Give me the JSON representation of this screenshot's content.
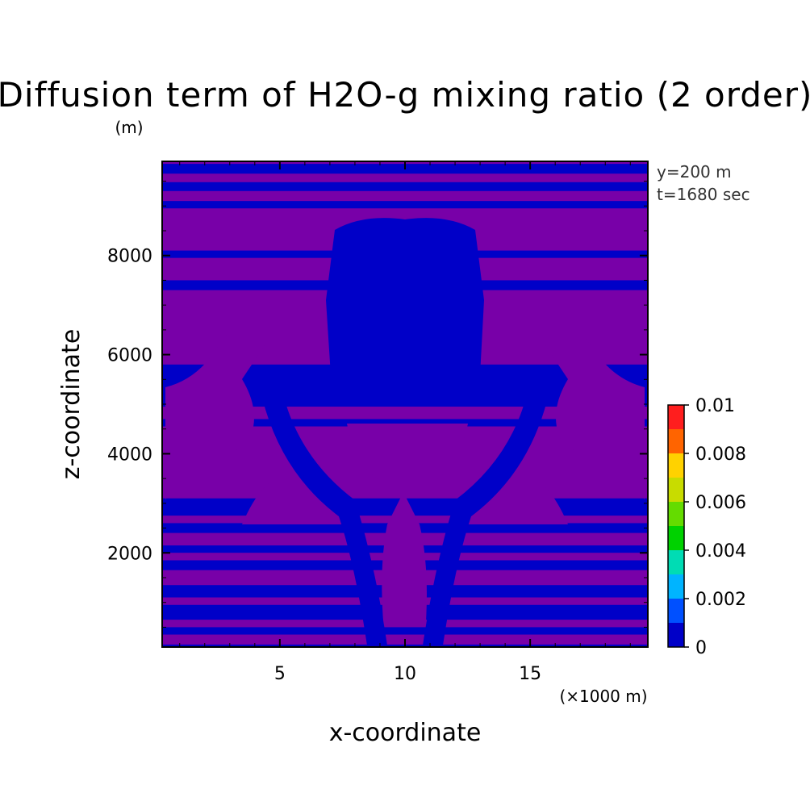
{
  "chart_data": {
    "type": "heatmap",
    "title": "Diffusion term of H2O-g mixing ratio (2 order)",
    "xlabel": "x-coordinate",
    "ylabel": "z-coordinate",
    "x_unit": "(×1000 m)",
    "y_unit": "(m)",
    "xlim": [
      0.3,
      19.7
    ],
    "ylim": [
      100,
      9900
    ],
    "x_ticks": [
      5,
      10,
      15
    ],
    "y_ticks": [
      2000,
      4000,
      6000,
      8000
    ],
    "annotations": [
      "y=200 m",
      "t=1680 sec"
    ],
    "colorbar": {
      "ticks": [
        "0",
        "0.002",
        "0.004",
        "0.006",
        "0.008",
        "0.01"
      ],
      "colors": [
        "#0000c8",
        "#0050ff",
        "#00b4ff",
        "#00dcb4",
        "#00d200",
        "#64dc00",
        "#c8dc00",
        "#ffd200",
        "#ff6400",
        "#ff1e1e"
      ]
    },
    "field_colors": {
      "low": "#0000c8",
      "high": "#7800a8"
    },
    "bands_z": [
      [
        9850,
        9650,
        0
      ],
      [
        9650,
        9480,
        1
      ],
      [
        9480,
        9300,
        0
      ],
      [
        9300,
        9100,
        1
      ],
      [
        9100,
        8950,
        0
      ],
      [
        8950,
        8700,
        1
      ],
      [
        8700,
        8550,
        1
      ],
      [
        8550,
        8300,
        1
      ],
      [
        8300,
        8100,
        1
      ],
      [
        8100,
        7950,
        0
      ],
      [
        7950,
        7500,
        1
      ],
      [
        7500,
        7300,
        0
      ],
      [
        7300,
        5800,
        1
      ],
      [
        5800,
        5350,
        0
      ],
      [
        5350,
        4950,
        0
      ],
      [
        4950,
        4700,
        1
      ],
      [
        4700,
        4550,
        0
      ],
      [
        4550,
        3100,
        1
      ],
      [
        3100,
        2750,
        0
      ],
      [
        2750,
        2600,
        1
      ],
      [
        2600,
        2400,
        0
      ],
      [
        2400,
        2150,
        1
      ],
      [
        2150,
        2000,
        0
      ],
      [
        2000,
        1850,
        1
      ],
      [
        1850,
        1650,
        0
      ],
      [
        1650,
        1350,
        1
      ],
      [
        1350,
        1100,
        0
      ],
      [
        1100,
        950,
        1
      ],
      [
        950,
        650,
        0
      ],
      [
        650,
        500,
        1
      ],
      [
        500,
        350,
        0
      ],
      [
        350,
        150,
        1
      ],
      [
        150,
        100,
        0
      ]
    ]
  }
}
